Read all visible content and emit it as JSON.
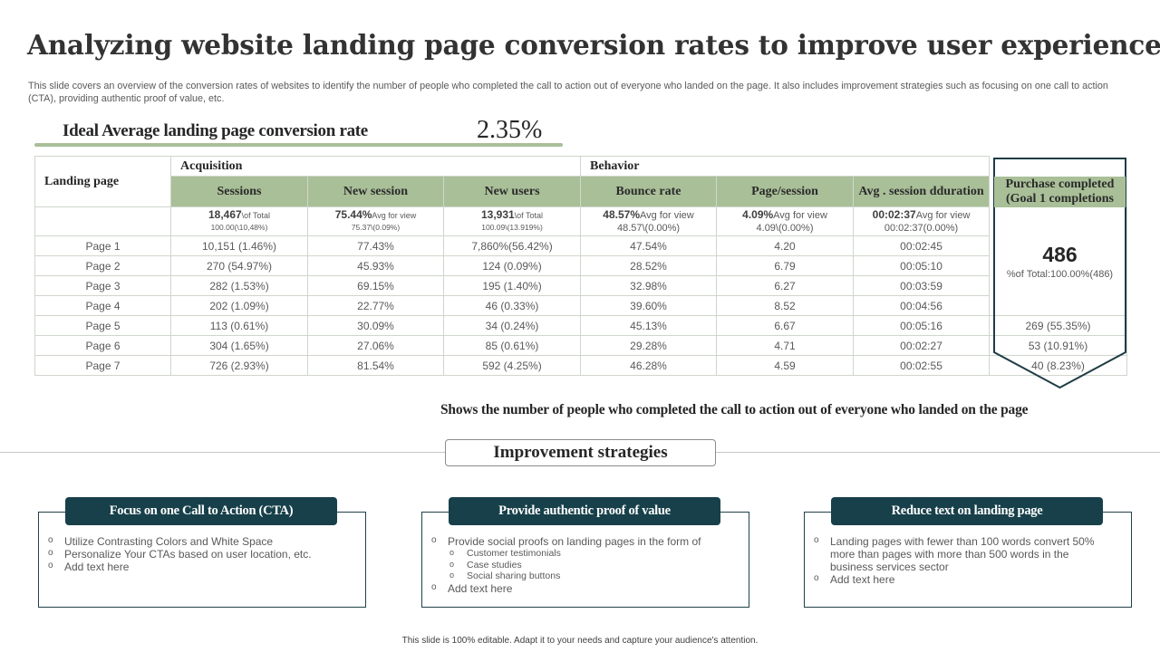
{
  "title": "Analyzing  website landing page conversion rates to improve user experience",
  "subtitle": "This slide covers an overview of the conversion rates of websites to identify the number of people who completed the call to action out of everyone who landed on the page. It also includes improvement strategies such as focusing on one call to action (CTA),  providing authentic proof of value, etc.",
  "ideal": {
    "label": "Ideal Average landing page conversion rate",
    "value": "2.35%"
  },
  "table": {
    "landing_header": "Landing page",
    "group_acquisition": "Acquisition",
    "group_behavior": "Behavior",
    "columns": [
      "Sessions",
      "New session",
      "New users",
      "Bounce rate",
      "Page/session",
      "Avg . session dduration"
    ],
    "purchase_header": "Purchase completed (Goal 1 completions",
    "summary": [
      {
        "main": "18,467",
        "suffix": "\\of Total",
        "line2": "100.00(\\10,48%)"
      },
      {
        "main": "75.44%",
        "suffix": "Avg  for view",
        "line2": "75.37\\(0.09%)"
      },
      {
        "main": "13,931",
        "suffix": "\\of Total",
        "line2": "100.09\\(13.919%)"
      },
      {
        "main": "48.57%",
        "suffix": "Avg  for view",
        "line2": "48.57\\(0.00%)"
      },
      {
        "main": "4.09%",
        "suffix": "Avg  for view",
        "line2": "4.09\\(0.00%)"
      },
      {
        "main": "00:02:37",
        "suffix": "Avg  for view",
        "line2": "00:02:37(0.00%)"
      }
    ],
    "rows": [
      {
        "page": "Page 1",
        "cells": [
          "10,151 (1.46%)",
          "77.43%",
          "7,860%(56.42%)",
          "47.54%",
          "4.20",
          "00:02:45"
        ],
        "purchase": ""
      },
      {
        "page": "Page 2",
        "cells": [
          "270 (54.97%)",
          "45.93%",
          "124 (0.09%)",
          "28.52%",
          "6.79",
          "00:05:10"
        ],
        "purchase": ""
      },
      {
        "page": "Page 3",
        "cells": [
          "282 (1.53%)",
          "69.15%",
          "195 (1.40%)",
          "32.98%",
          "6.27",
          "00:03:59"
        ],
        "purchase": ""
      },
      {
        "page": "Page 4",
        "cells": [
          "202 (1.09%)",
          "22.77%",
          "46 (0.33%)",
          "39.60%",
          "8.52",
          "00:04:56"
        ],
        "purchase": ""
      },
      {
        "page": "Page 5",
        "cells": [
          "113 (0.61%)",
          "30.09%",
          "34 (0.24%)",
          "45.13%",
          "6.67",
          "00:05:16"
        ],
        "purchase": "269 (55.35%)"
      },
      {
        "page": "Page 6",
        "cells": [
          "304 (1.65%)",
          "27.06%",
          "85 (0.61%)",
          "29.28%",
          "4.71",
          "00:02:27"
        ],
        "purchase": "53 (10.91%)"
      },
      {
        "page": "Page 7",
        "cells": [
          "726 (2.93%)",
          "81.54%",
          "592 (4.25%)",
          "46.28%",
          "4.59",
          "00:02:55"
        ],
        "purchase": "40 (8.23%)"
      }
    ],
    "purchase_total": "486",
    "purchase_total_sub": "%of Total:100.00%(486)"
  },
  "shows_text": "Shows the number of people who completed the call to action out of everyone who landed on the page",
  "improvement_title": "Improvement strategies",
  "cards": [
    {
      "title": "Focus on one Call to Action (CTA)",
      "items": [
        "Utilize Contrasting Colors and White Space",
        "Personalize Your CTAs based on user location, etc.",
        "Add text here"
      ]
    },
    {
      "title": "Provide authentic proof of value",
      "items": [
        "Provide social proofs on landing pages in the form of",
        "Add text here"
      ],
      "subitems": [
        "Customer testimonials",
        "Case studies",
        "Social sharing buttons"
      ]
    },
    {
      "title": "Reduce text on landing page",
      "items": [
        "Landing pages with fewer than 100 words convert 50% more than pages with more than 500 words in the business services sector",
        "Add text here"
      ]
    }
  ],
  "footer": "This slide is 100% editable. Adapt it to your needs and capture your audience's attention.",
  "colors": {
    "header_green": "#a9bf98",
    "dark_teal": "#17404a"
  }
}
